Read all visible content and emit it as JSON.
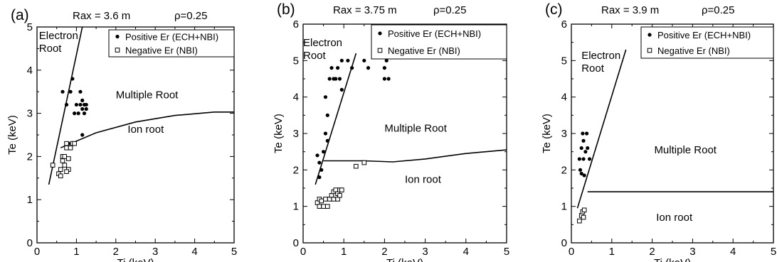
{
  "chart_data": [
    {
      "type": "scatter",
      "panel_label": "(a)",
      "title": "Rax = 3.6 m",
      "rho_label": "ρ=0.25",
      "xlabel": "Ti (keV)",
      "ylabel": "Te (keV)",
      "xlim": [
        0,
        5
      ],
      "ylim": [
        0,
        5
      ],
      "xticks": [
        "0",
        "1",
        "2",
        "3",
        "4",
        "5"
      ],
      "yticks": [
        "0",
        "1",
        "2",
        "3",
        "4",
        "5"
      ],
      "grid": false,
      "legend_position": "top-right",
      "series": [
        {
          "name": "Positive Er (ECH+NBI)",
          "marker": "filled-circle",
          "points": [
            [
              0.65,
              3.5
            ],
            [
              0.75,
              3.2
            ],
            [
              0.85,
              3.5
            ],
            [
              0.9,
              3.8
            ],
            [
              0.95,
              3.0
            ],
            [
              1.0,
              3.2
            ],
            [
              1.05,
              3.0
            ],
            [
              1.1,
              3.5
            ],
            [
              1.1,
              3.2
            ],
            [
              1.15,
              3.1
            ],
            [
              1.15,
              3.3
            ],
            [
              1.2,
              3.0
            ],
            [
              1.2,
              3.2
            ],
            [
              1.25,
              3.2
            ],
            [
              1.25,
              3.1
            ],
            [
              1.15,
              2.5
            ],
            [
              0.95,
              2.3
            ],
            [
              0.8,
              2.3
            ]
          ]
        },
        {
          "name": "Negative Er (NBI)",
          "marker": "open-square",
          "points": [
            [
              0.4,
              1.8
            ],
            [
              0.55,
              1.6
            ],
            [
              0.6,
              1.55
            ],
            [
              0.6,
              1.7
            ],
            [
              0.65,
              1.9
            ],
            [
              0.65,
              2.0
            ],
            [
              0.7,
              1.8
            ],
            [
              0.7,
              2.0
            ],
            [
              0.75,
              2.2
            ],
            [
              0.75,
              2.3
            ],
            [
              0.8,
              1.7
            ],
            [
              0.8,
              1.95
            ],
            [
              0.85,
              2.2
            ],
            [
              0.9,
              2.3
            ],
            [
              0.95,
              2.3
            ],
            [
              0.75,
              1.65
            ]
          ]
        }
      ],
      "lines": [
        {
          "name": "electron-root-boundary",
          "points": [
            [
              0.3,
              1.35
            ],
            [
              1.15,
              5.0
            ]
          ]
        },
        {
          "name": "ion-root-boundary",
          "points": [
            [
              0.6,
              2.2
            ],
            [
              1.5,
              2.55
            ],
            [
              2.5,
              2.8
            ],
            [
              3.5,
              2.95
            ],
            [
              4.5,
              3.03
            ],
            [
              5.0,
              3.03
            ]
          ]
        }
      ],
      "annotations": [
        {
          "id": "electron",
          "text": [
            "Electron",
            "Root"
          ],
          "x": 0.05,
          "y": 4.72
        },
        {
          "id": "multiple",
          "text": [
            "Multiple Root"
          ],
          "x": 2.0,
          "y": 3.35
        },
        {
          "id": "ion",
          "text": [
            "Ion root"
          ],
          "x": 2.3,
          "y": 2.55
        }
      ]
    },
    {
      "type": "scatter",
      "panel_label": "(b)",
      "title": "Rax = 3.75 m",
      "rho_label": "ρ=0.25",
      "xlabel": "Ti (keV)",
      "ylabel": "Te (keV)",
      "xlim": [
        0,
        5
      ],
      "ylim": [
        0,
        6
      ],
      "xticks": [
        "0",
        "1",
        "2",
        "3",
        "4",
        "5"
      ],
      "yticks": [
        "0",
        "1",
        "2",
        "3",
        "4",
        "5",
        "6"
      ],
      "grid": false,
      "legend_position": "top-right",
      "series": [
        {
          "name": "Positive Er (ECH+NBI)",
          "marker": "filled-circle",
          "points": [
            [
              0.35,
              2.4
            ],
            [
              0.4,
              2.2
            ],
            [
              0.4,
              1.8
            ],
            [
              0.45,
              2.0
            ],
            [
              0.5,
              2.5
            ],
            [
              0.55,
              4.0
            ],
            [
              0.55,
              3.0
            ],
            [
              0.6,
              2.8
            ],
            [
              0.6,
              3.5
            ],
            [
              0.65,
              4.5
            ],
            [
              0.7,
              4.8
            ],
            [
              0.75,
              4.5
            ],
            [
              0.8,
              4.5
            ],
            [
              0.85,
              4.8
            ],
            [
              0.9,
              4.5
            ],
            [
              0.95,
              4.2
            ],
            [
              0.95,
              5.0
            ],
            [
              1.1,
              5.0
            ],
            [
              1.2,
              4.8
            ],
            [
              1.5,
              5.0
            ],
            [
              1.6,
              4.8
            ],
            [
              2.0,
              4.5
            ],
            [
              2.0,
              4.8
            ],
            [
              2.05,
              5.0
            ],
            [
              2.1,
              4.5
            ]
          ]
        },
        {
          "name": "Negative Er (NBI)",
          "marker": "open-square",
          "points": [
            [
              0.35,
              1.1
            ],
            [
              0.4,
              1.2
            ],
            [
              0.4,
              1.0
            ],
            [
              0.45,
              1.15
            ],
            [
              0.5,
              1.0
            ],
            [
              0.55,
              1.2
            ],
            [
              0.6,
              1.0
            ],
            [
              0.65,
              1.2
            ],
            [
              0.7,
              1.3
            ],
            [
              0.75,
              1.4
            ],
            [
              0.75,
              1.2
            ],
            [
              0.8,
              1.3
            ],
            [
              0.8,
              1.45
            ],
            [
              0.85,
              1.35
            ],
            [
              0.85,
              1.2
            ],
            [
              0.9,
              1.45
            ],
            [
              0.9,
              1.3
            ],
            [
              0.95,
              1.45
            ],
            [
              1.3,
              2.1
            ],
            [
              1.5,
              2.2
            ]
          ]
        }
      ],
      "lines": [
        {
          "name": "electron-root-boundary",
          "points": [
            [
              0.3,
              1.6
            ],
            [
              1.3,
              5.2
            ]
          ]
        },
        {
          "name": "ion-root-boundary",
          "points": [
            [
              0.5,
              2.25
            ],
            [
              1.5,
              2.25
            ],
            [
              2.2,
              2.22
            ],
            [
              3.0,
              2.3
            ],
            [
              4.0,
              2.45
            ],
            [
              5.0,
              2.55
            ]
          ]
        }
      ],
      "annotations": [
        {
          "id": "electron",
          "text": [
            "Electron",
            "Root"
          ],
          "x": 0.0,
          "y": 5.4
        },
        {
          "id": "multiple",
          "text": [
            "Multiple Root"
          ],
          "x": 2.0,
          "y": 3.05
        },
        {
          "id": "ion",
          "text": [
            "Ion root"
          ],
          "x": 2.5,
          "y": 1.65
        }
      ]
    },
    {
      "type": "scatter",
      "panel_label": "(c)",
      "title": "Rax = 3.9 m",
      "rho_label": "ρ=0.25",
      "xlabel": "Ti (keV)",
      "ylabel": "Te (keV)",
      "xlim": [
        0,
        5
      ],
      "ylim": [
        0,
        6
      ],
      "xticks": [
        "0",
        "1",
        "2",
        "3",
        "4",
        "5"
      ],
      "yticks": [
        "0",
        "1",
        "2",
        "3",
        "4",
        "5",
        "6"
      ],
      "grid": false,
      "legend_position": "top-right",
      "series": [
        {
          "name": "Positive Er (ECH+NBI)",
          "marker": "filled-circle",
          "points": [
            [
              0.2,
              2.3
            ],
            [
              0.22,
              2.0
            ],
            [
              0.25,
              2.6
            ],
            [
              0.25,
              1.9
            ],
            [
              0.28,
              3.0
            ],
            [
              0.3,
              2.8
            ],
            [
              0.3,
              2.3
            ],
            [
              0.32,
              1.85
            ],
            [
              0.35,
              2.5
            ],
            [
              0.38,
              3.0
            ],
            [
              0.4,
              2.6
            ],
            [
              0.45,
              2.3
            ]
          ]
        },
        {
          "name": "Negative Er (NBI)",
          "marker": "open-square",
          "points": [
            [
              0.2,
              0.6
            ],
            [
              0.25,
              0.75
            ],
            [
              0.28,
              0.85
            ],
            [
              0.3,
              0.7
            ],
            [
              0.32,
              0.9
            ]
          ]
        }
      ],
      "lines": [
        {
          "name": "electron-root-boundary",
          "points": [
            [
              0.15,
              0.95
            ],
            [
              1.35,
              5.3
            ]
          ]
        },
        {
          "name": "ion-root-boundary",
          "points": [
            [
              0.4,
              1.4
            ],
            [
              5.0,
              1.4
            ]
          ]
        }
      ],
      "annotations": [
        {
          "id": "electron",
          "text": [
            "Electron",
            "Root"
          ],
          "x": 0.25,
          "y": 5.05
        },
        {
          "id": "multiple",
          "text": [
            "Multiple Root"
          ],
          "x": 2.05,
          "y": 2.45
        },
        {
          "id": "ion",
          "text": [
            "Ion root"
          ],
          "x": 2.1,
          "y": 0.6
        }
      ]
    }
  ]
}
